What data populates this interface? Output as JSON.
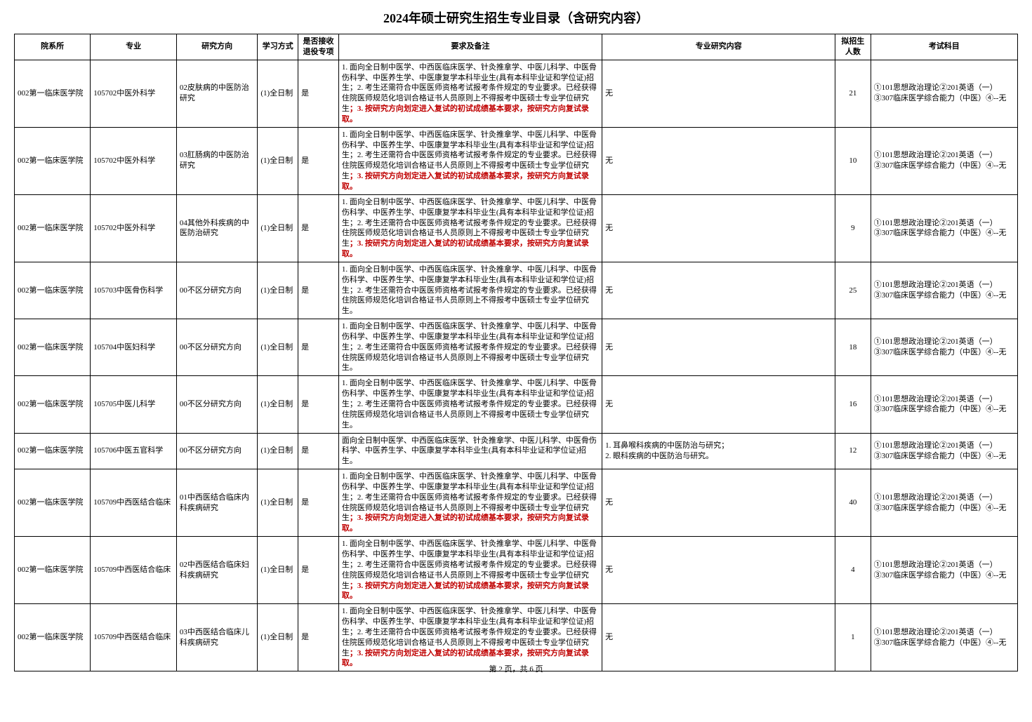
{
  "title": "2024年硕士研究生招生专业目录（含研究内容）",
  "headers": {
    "dept": "院系所",
    "major": "专业",
    "direction": "研究方向",
    "mode": "学习方式",
    "retire": "是否接收退役专项",
    "req": "要求及备注",
    "content": "专业研究内容",
    "plan": "拟招生人数",
    "exam": "考试科目"
  },
  "req_base": "1. 面向全日制中医学、中西医临床医学、针灸推拿学、中医儿科学、中医骨伤科学、中医养生学、中医康复学本科毕业生(具有本科毕业证和学位证)招生；2. 考生还需符合中医医师资格考试报考条件规定的专业要求。已经获得住院医师规范化培训合格证书人员原则上不得报考中医硕士专业学位研究生",
  "req_red": "；3. 按研究方向划定进入复试的初试成绩基本要求，按研究方向复试录取。",
  "req_short": "1. 面向全日制中医学、中西医临床医学、针灸推拿学、中医儿科学、中医骨伤科学、中医养生学、中医康复学本科毕业生(具有本科毕业证和学位证)招生；2. 考生还需符合中医医师资格考试报考条件规定的专业要求。已经获得住院医师规范化培训合格证书人员原则上不得报考中医硕士专业学位研究生。",
  "req_wugan": "面向全日制中医学、中西医临床医学、针灸推拿学、中医儿科学、中医骨伤科学、中医养生学、中医康复学本科毕业生(具有本科毕业证和学位证)招生。",
  "exam_text": "①101思想政治理论②201英语（一）③307临床医学综合能力（中医）④--无",
  "rows": [
    {
      "dept": "002第一临床医学院",
      "major": "105702中医外科学",
      "dir": "02皮肤病的中医防治研究",
      "mode": "(1)全日制",
      "retire": "是",
      "reqType": "full",
      "content": "无",
      "plan": "21"
    },
    {
      "dept": "002第一临床医学院",
      "major": "105702中医外科学",
      "dir": "03肛肠病的中医防治研究",
      "mode": "(1)全日制",
      "retire": "是",
      "reqType": "full",
      "content": "无",
      "plan": "10"
    },
    {
      "dept": "002第一临床医学院",
      "major": "105702中医外科学",
      "dir": "04其他外科疾病的中医防治研究",
      "mode": "(1)全日制",
      "retire": "是",
      "reqType": "full",
      "content": "无",
      "plan": "9"
    },
    {
      "dept": "002第一临床医学院",
      "major": "105703中医骨伤科学",
      "dir": "00不区分研究方向",
      "mode": "(1)全日制",
      "retire": "是",
      "reqType": "short",
      "content": "无",
      "plan": "25"
    },
    {
      "dept": "002第一临床医学院",
      "major": "105704中医妇科学",
      "dir": "00不区分研究方向",
      "mode": "(1)全日制",
      "retire": "是",
      "reqType": "short",
      "content": "无",
      "plan": "18"
    },
    {
      "dept": "002第一临床医学院",
      "major": "105705中医儿科学",
      "dir": "00不区分研究方向",
      "mode": "(1)全日制",
      "retire": "是",
      "reqType": "short",
      "content": "无",
      "plan": "16"
    },
    {
      "dept": "002第一临床医学院",
      "major": "105706中医五官科学",
      "dir": "00不区分研究方向",
      "mode": "(1)全日制",
      "retire": "是",
      "reqType": "wugan",
      "content": "1. 耳鼻喉科疾病的中医防治与研究；\n2. 眼科疾病的中医防治与研究。",
      "plan": "12"
    },
    {
      "dept": "002第一临床医学院",
      "major": "105709中西医结合临床",
      "dir": "01中西医结合临床内科疾病研究",
      "mode": "(1)全日制",
      "retire": "是",
      "reqType": "full",
      "content": "无",
      "plan": "40"
    },
    {
      "dept": "002第一临床医学院",
      "major": "105709中西医结合临床",
      "dir": "02中西医结合临床妇科疾病研究",
      "mode": "(1)全日制",
      "retire": "是",
      "reqType": "full",
      "content": "无",
      "plan": "4"
    },
    {
      "dept": "002第一临床医学院",
      "major": "105709中西医结合临床",
      "dir": "03中西医结合临床儿科疾病研究",
      "mode": "(1)全日制",
      "retire": "是",
      "reqType": "full",
      "content": "无",
      "plan": "1"
    }
  ],
  "pager": "第 2 页，共 6 页"
}
